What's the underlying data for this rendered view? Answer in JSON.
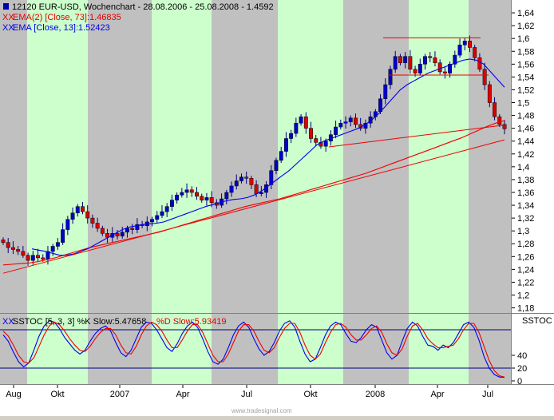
{
  "header": {
    "title": "12120  EUR-USD, Wochenchart - 28.08.2006 - 25.08.2008 - 1.4592",
    "indicators": [
      {
        "prefix": "XX",
        "text": "EMA(2) [Close, 73]:1.46835",
        "color": "#e00000"
      },
      {
        "prefix": "XX",
        "text": "EMA [Close, 13]:1.52423",
        "color": "#0000e0"
      }
    ]
  },
  "stoch_header": {
    "prefix": "XX",
    "k_text": "SSTOC [5, 3, 3] %K Slow:5.47658",
    "d_text": "%D Slow:5.93419",
    "tag": "SSTOC"
  },
  "watermark": "www.tradesignal.com",
  "colors": {
    "plot_bg": "#c0c0c0",
    "band": "#ccffcc",
    "up": "#0000cc",
    "down": "#dd0000",
    "ema_fast": "#0000ee",
    "ema_slow": "#ee0000",
    "trend": "#ee0000"
  },
  "chart_data": [
    {
      "type": "candlestick",
      "title": "12120  EUR-USD, Wochenchart - 28.08.2006 - 25.08.2008 - 1.4592",
      "x_tick_labels": [
        "Aug",
        "Okt",
        "2007",
        "Apr",
        "Jul",
        "Okt",
        "2008",
        "Apr",
        "Jul"
      ],
      "y_tick_labels": [
        "1,64",
        "1,62",
        "1,6",
        "1,58",
        "1,56",
        "1,54",
        "1,52",
        "1,5",
        "1,48",
        "1,46",
        "1,44",
        "1,42",
        "1,4",
        "1,38",
        "1,36",
        "1,34",
        "1,32",
        "1,3",
        "1,28",
        "1,26",
        "1,24",
        "1,22",
        "1,2",
        "1,18"
      ],
      "ylim": [
        1.172,
        1.66
      ],
      "series": [
        {
          "name": "EUR-USD",
          "kind": "candles",
          "close": [
            1.282,
            1.274,
            1.271,
            1.268,
            1.262,
            1.254,
            1.262,
            1.258,
            1.256,
            1.268,
            1.276,
            1.282,
            1.302,
            1.318,
            1.328,
            1.338,
            1.33,
            1.32,
            1.312,
            1.304,
            1.296,
            1.29,
            1.296,
            1.292,
            1.298,
            1.304,
            1.302,
            1.31,
            1.308,
            1.314,
            1.318,
            1.324,
            1.33,
            1.338,
            1.348,
            1.356,
            1.36,
            1.364,
            1.36,
            1.354,
            1.348,
            1.352,
            1.344,
            1.34,
            1.35,
            1.36,
            1.37,
            1.378,
            1.384,
            1.382,
            1.372,
            1.358,
            1.36,
            1.372,
            1.394,
            1.41,
            1.424,
            1.444,
            1.452,
            1.468,
            1.478,
            1.46,
            1.444,
            1.438,
            1.432,
            1.44,
            1.45,
            1.462,
            1.468,
            1.47,
            1.476,
            1.466,
            1.46,
            1.468,
            1.478,
            1.486,
            1.506,
            1.528,
            1.552,
            1.572,
            1.562,
            1.572,
            1.552,
            1.546,
            1.56,
            1.572,
            1.57,
            1.562,
            1.548,
            1.546,
            1.56,
            1.574,
            1.59,
            1.596,
            1.586,
            1.57,
            1.552,
            1.528,
            1.5,
            1.478,
            1.466,
            1.4592
          ]
        },
        {
          "name": "EMA(2) [Close, 73]",
          "kind": "line",
          "color": "#ee0000",
          "values": [
            1.247,
            1.248,
            1.249,
            1.25,
            1.252,
            1.255,
            1.258,
            1.262,
            1.266,
            1.27,
            1.274,
            1.277,
            1.28,
            1.283,
            1.286,
            1.289,
            1.292,
            1.295,
            1.298,
            1.302,
            1.306,
            1.31,
            1.314,
            1.318,
            1.322,
            1.326,
            1.33,
            1.334,
            1.338,
            1.341,
            1.344,
            1.347,
            1.35,
            1.354,
            1.358,
            1.362,
            1.366,
            1.37,
            1.374,
            1.378,
            1.382,
            1.386,
            1.39,
            1.395,
            1.4,
            1.405,
            1.41,
            1.415,
            1.42,
            1.425,
            1.43,
            1.435,
            1.44,
            1.445,
            1.451,
            1.457,
            1.463,
            1.468,
            1.472
          ]
        },
        {
          "name": "EMA [Close, 13]",
          "kind": "line",
          "color": "#0000ee",
          "values": [
            1.272,
            1.27,
            1.268,
            1.265,
            1.262,
            1.262,
            1.264,
            1.268,
            1.272,
            1.278,
            1.284,
            1.29,
            1.296,
            1.302,
            1.306,
            1.308,
            1.31,
            1.311,
            1.312,
            1.314,
            1.318,
            1.322,
            1.326,
            1.33,
            1.334,
            1.338,
            1.341,
            1.344,
            1.347,
            1.349,
            1.35,
            1.352,
            1.356,
            1.362,
            1.37,
            1.378,
            1.386,
            1.394,
            1.404,
            1.414,
            1.424,
            1.434,
            1.44,
            1.444,
            1.448,
            1.452,
            1.456,
            1.46,
            1.466,
            1.474,
            1.484,
            1.496,
            1.508,
            1.52,
            1.528,
            1.534,
            1.54,
            1.546,
            1.55,
            1.554,
            1.558,
            1.562,
            1.566,
            1.568,
            1.566,
            1.56,
            1.548,
            1.536,
            1.524
          ]
        }
      ]
    },
    {
      "type": "line",
      "title": "SSTOC [5, 3, 3]",
      "x_tick_labels": [
        "Aug",
        "Okt",
        "2007",
        "Apr",
        "Jul",
        "Okt",
        "2008",
        "Apr",
        "Jul"
      ],
      "y_tick_labels": [
        "40",
        "20",
        "0"
      ],
      "ylim": [
        -5,
        105
      ],
      "levels": [
        20,
        80
      ],
      "series": [
        {
          "name": "%K Slow",
          "color": "#0000ee",
          "values": [
            72,
            62,
            45,
            30,
            22,
            28,
            48,
            70,
            86,
            94,
            92,
            82,
            68,
            58,
            48,
            42,
            48,
            62,
            74,
            82,
            86,
            78,
            60,
            44,
            38,
            48,
            66,
            84,
            92,
            90,
            80,
            66,
            52,
            46,
            58,
            74,
            86,
            92,
            84,
            66,
            46,
            30,
            26,
            34,
            52,
            72,
            86,
            92,
            84,
            66,
            50,
            40,
            46,
            60,
            78,
            90,
            94,
            84,
            62,
            42,
            30,
            34,
            52,
            72,
            86,
            92,
            88,
            74,
            62,
            60,
            68,
            80,
            88,
            84,
            64,
            44,
            34,
            40,
            62,
            82,
            92,
            86,
            70,
            56,
            54,
            48,
            56,
            52,
            60,
            74,
            88,
            92,
            84,
            64,
            38,
            20,
            10,
            6,
            5.5
          ]
        },
        {
          "name": "%D Slow",
          "color": "#ee0000",
          "values": [
            78,
            70,
            56,
            40,
            30,
            28,
            36,
            54,
            72,
            86,
            92,
            88,
            78,
            66,
            56,
            48,
            46,
            54,
            66,
            76,
            82,
            82,
            72,
            56,
            44,
            42,
            54,
            72,
            86,
            92,
            88,
            78,
            64,
            52,
            52,
            64,
            78,
            88,
            88,
            76,
            58,
            40,
            30,
            30,
            42,
            60,
            78,
            88,
            88,
            78,
            62,
            48,
            44,
            52,
            68,
            82,
            90,
            90,
            76,
            56,
            40,
            34,
            42,
            60,
            76,
            88,
            90,
            84,
            72,
            64,
            64,
            72,
            82,
            86,
            76,
            58,
            44,
            40,
            50,
            70,
            86,
            90,
            80,
            66,
            58,
            52,
            52,
            54,
            56,
            66,
            80,
            90,
            90,
            76,
            54,
            32,
            16,
            8,
            6
          ]
        }
      ]
    }
  ]
}
